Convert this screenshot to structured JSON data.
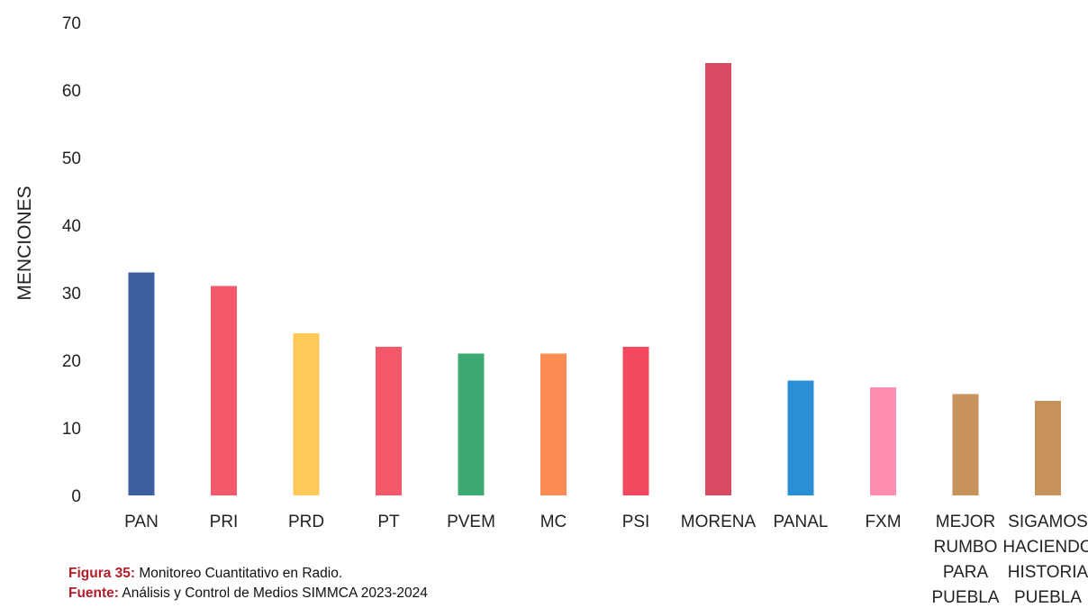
{
  "chart_data": {
    "type": "bar",
    "ylabel": "MENCIONES",
    "ylim": [
      0,
      70
    ],
    "yticks": [
      "0",
      "10",
      "20",
      "30",
      "40",
      "50",
      "60",
      "70"
    ],
    "categories": [
      [
        "PAN"
      ],
      [
        "PRI"
      ],
      [
        "PRD"
      ],
      [
        "PT"
      ],
      [
        "PVEM"
      ],
      [
        "MC"
      ],
      [
        "PSI"
      ],
      [
        "MORENA"
      ],
      [
        "PANAL"
      ],
      [
        "FXM"
      ],
      [
        "MEJOR",
        "RUMBO",
        "PARA",
        "PUEBLA"
      ],
      [
        "SIGAMOS",
        "HACIENDO",
        "HISTORIA",
        "PUEBLA"
      ]
    ],
    "values": [
      33,
      31,
      24,
      22,
      21,
      21,
      22,
      64,
      17,
      16,
      15,
      14
    ],
    "colors": [
      "#3b5fa0",
      "#f4596b",
      "#ffc857",
      "#f4596b",
      "#3daa73",
      "#fd8c52",
      "#f4485e",
      "#d94a62",
      "#2b8fd6",
      "#ff8fb0",
      "#c8935a",
      "#c8935a"
    ]
  },
  "caption": {
    "figure_label": "Figura 35:",
    "figure_text": " Monitoreo Cuantitativo en Radio.",
    "source_label": "Fuente:",
    "source_text": " Análisis y Control de Medios SIMMCA 2023-2024"
  }
}
